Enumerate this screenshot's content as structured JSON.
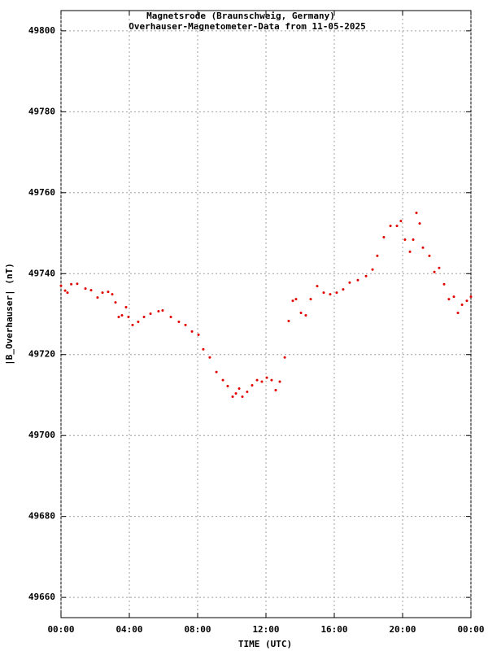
{
  "chart_data": {
    "type": "scatter",
    "title": "Magnetsrode (Braunschweig, Germany)",
    "subtitle": "Overhauser-Magnetometer-Data from 11-05-2025",
    "x_label": "TIME (UTC)",
    "y_label": "|B_Overhauser| (nT)",
    "xlim": [
      0,
      24
    ],
    "xticks": [
      {
        "value": 0,
        "label": "00:00"
      },
      {
        "value": 4,
        "label": "04:00"
      },
      {
        "value": 8,
        "label": "08:00"
      },
      {
        "value": 12,
        "label": "12:00"
      },
      {
        "value": 16,
        "label": "16:00"
      },
      {
        "value": 20,
        "label": "20:00"
      },
      {
        "value": 24,
        "label": "00:00"
      }
    ],
    "ylim": [
      49655,
      49805
    ],
    "yticks": [
      49660,
      49680,
      49700,
      49720,
      49740,
      49760,
      49780,
      49800
    ],
    "grid": true,
    "color": "#e00000",
    "x": [
      0,
      0.24,
      0.38,
      0.6,
      0.95,
      1.43,
      1.76,
      2.14,
      2.43,
      2.76,
      3.0,
      3.19,
      3.38,
      3.57,
      3.81,
      3.95,
      4.19,
      4.52,
      4.86,
      5.24,
      5.71,
      5.95,
      6.43,
      6.9,
      7.29,
      7.67,
      8.05,
      8.33,
      8.71,
      9.1,
      9.48,
      9.76,
      10.05,
      10.24,
      10.43,
      10.62,
      10.9,
      11.19,
      11.48,
      11.76,
      12.05,
      12.33,
      12.57,
      12.81,
      13.1,
      13.33,
      13.57,
      13.76,
      14.05,
      14.33,
      14.62,
      15.0,
      15.38,
      15.76,
      16.14,
      16.52,
      16.9,
      17.38,
      17.86,
      18.24,
      18.52,
      18.9,
      19.29,
      19.67,
      19.9,
      20.14,
      20.43,
      20.62,
      20.81,
      21.0,
      21.19,
      21.57,
      21.86,
      22.14,
      22.43,
      22.71,
      23.0,
      23.24,
      23.48,
      23.76,
      24
    ],
    "values": [
      49737,
      49735.8,
      49735.3,
      49737.4,
      49737.5,
      49736.3,
      49735.9,
      49734.1,
      49735.3,
      49735.5,
      49734.9,
      49732.9,
      49729.3,
      49729.7,
      49731.7,
      49729.3,
      49727.3,
      49728.1,
      49729.3,
      49730.1,
      49730.7,
      49730.9,
      49729.3,
      49728.1,
      49727.3,
      49725.7,
      49724.9,
      49721.3,
      49719.3,
      49715.7,
      49713.7,
      49712.2,
      49709.6,
      49710.4,
      49711.6,
      49709.6,
      49710.8,
      49712.4,
      49713.7,
      49713.3,
      49714.3,
      49713.7,
      49711.2,
      49713.3,
      49719.3,
      49728.3,
      49733.3,
      49733.7,
      49730.3,
      49729.7,
      49733.7,
      49736.9,
      49735.3,
      49734.9,
      49735.3,
      49736.1,
      49737.8,
      49738.4,
      49739.4,
      49741,
      49744.4,
      49749,
      49751.8,
      49751.8,
      49753,
      49748.4,
      49745.4,
      49748.4,
      49755,
      49752.4,
      49746.4,
      49744.4,
      49740.4,
      49741.4,
      49737.4,
      49733.7,
      49734.3,
      49730.3,
      49732.3,
      49733.3,
      49734.3
    ]
  }
}
